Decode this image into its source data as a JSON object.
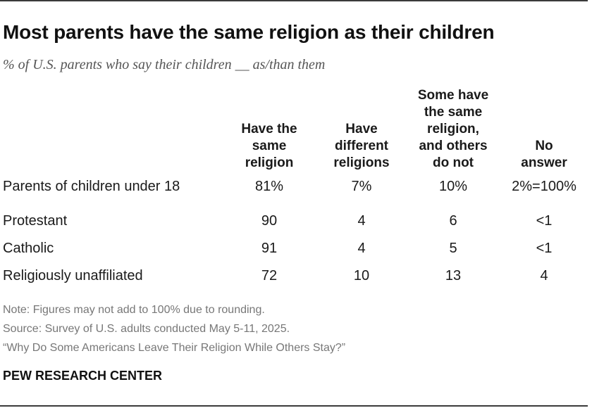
{
  "title": "Most parents have the same religion as their children",
  "subtitle": "% of U.S. parents who say their children __ as/than them",
  "chart_data": {
    "type": "table",
    "columns": [
      {
        "lines": [
          "Have the",
          "same",
          "religion"
        ]
      },
      {
        "lines": [
          "Have",
          "different",
          "religions"
        ]
      },
      {
        "lines": [
          "Some have",
          "the same",
          "religion,",
          "and others",
          "do not"
        ]
      },
      {
        "lines": [
          "No",
          "answer"
        ]
      }
    ],
    "rows": [
      {
        "label": "Parents of children under 18",
        "values": [
          "81%",
          "7%",
          "10%",
          "2%=100%"
        ]
      },
      {
        "label": "Protestant",
        "values": [
          "90",
          "4",
          "6",
          "<1"
        ]
      },
      {
        "label": "Catholic",
        "values": [
          "91",
          "4",
          "5",
          "<1"
        ]
      },
      {
        "label": "Religiously unaffiliated",
        "values": [
          "72",
          "10",
          "13",
          "4"
        ]
      }
    ]
  },
  "notes": {
    "note": "Note: Figures may not add to 100% due to rounding.",
    "source": "Source: Survey of U.S. adults conducted May 5-11, 2025.",
    "report": "“Why Do Some Americans Leave Their Religion While Others Stay?”"
  },
  "org": "PEW RESEARCH CENTER"
}
